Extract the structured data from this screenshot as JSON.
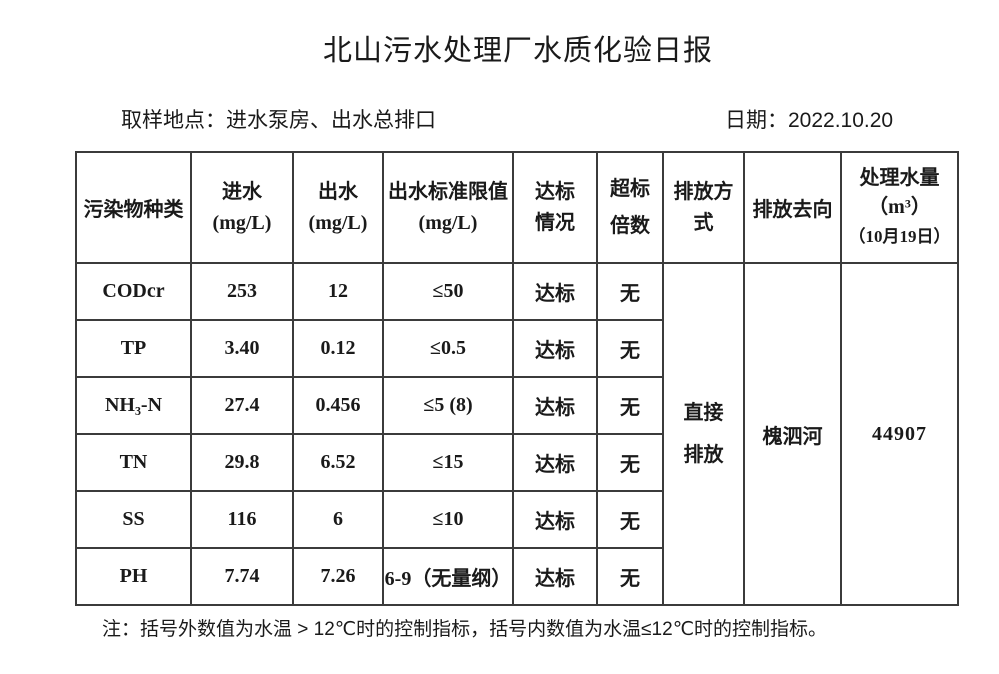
{
  "colors": {
    "background": "#ffffff",
    "ink": "#1a1a1a",
    "table_border": "#3b3b3b"
  },
  "title": "北山污水处理厂水质化验日报",
  "sample_location": "取样地点：进水泵房、出水总排口",
  "date_label": "日期：2022.10.20",
  "table": {
    "headers": {
      "pollutant": "污染物种类",
      "inflow": [
        "进水",
        "(mg/L)"
      ],
      "outflow": [
        "出水",
        "(mg/L)"
      ],
      "limit": [
        "出水标准限值",
        "(mg/L)"
      ],
      "compliance": [
        "达标",
        "情况"
      ],
      "exceed": [
        "超标",
        "倍数"
      ],
      "discharge_method": [
        "排放方",
        "式"
      ],
      "discharge_destination": "排放去向",
      "volume": [
        "处理水量",
        "（m³）",
        "（10月19日）"
      ]
    },
    "rows": [
      {
        "name": "CODcr",
        "inflow": "253",
        "outflow": "12",
        "limit": "≤50",
        "compliance": "达标",
        "exceed": "无"
      },
      {
        "name": "TP",
        "inflow": "3.40",
        "outflow": "0.12",
        "limit": "≤0.5",
        "compliance": "达标",
        "exceed": "无"
      },
      {
        "name": "NH₃-N",
        "inflow": "27.4",
        "outflow": "0.456",
        "limit": "≤5 (8)",
        "compliance": "达标",
        "exceed": "无"
      },
      {
        "name": "TN",
        "inflow": "29.8",
        "outflow": "6.52",
        "limit": "≤15",
        "compliance": "达标",
        "exceed": "无"
      },
      {
        "name": "SS",
        "inflow": "116",
        "outflow": "6",
        "limit": "≤10",
        "compliance": "达标",
        "exceed": "无"
      },
      {
        "name": "PH",
        "inflow": "7.74",
        "outflow": "7.26",
        "limit": "6-9（无量纲）",
        "compliance": "达标",
        "exceed": "无"
      }
    ],
    "merged": {
      "discharge_method": [
        "直接",
        "排放"
      ],
      "discharge_destination": "槐泗河",
      "volume": "44907"
    }
  },
  "footnote": "注：括号外数值为水温 > 12℃时的控制指标，括号内数值为水温≤12℃时的控制指标。"
}
